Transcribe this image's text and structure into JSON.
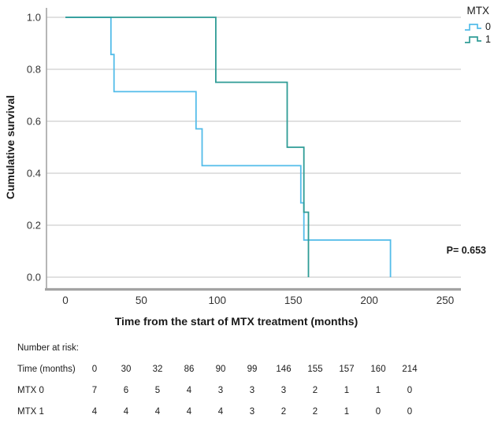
{
  "chart": {
    "y_axis_title": "Cumulative survival",
    "x_axis_title": "Time from the start of MTX treatment (months)",
    "p_value_label": "P= 0.653",
    "legend": {
      "title": "MTX",
      "entries": [
        {
          "label": "0",
          "color": "#53BCE9"
        },
        {
          "label": "1",
          "color": "#2F9C96"
        }
      ]
    }
  },
  "chart_data": {
    "type": "line",
    "subtype": "kaplan-meier-step",
    "title": "",
    "xlabel": "Time from the start of MTX treatment (months)",
    "ylabel": "Cumulative survival",
    "xlim": [
      0,
      260
    ],
    "ylim": [
      0.0,
      1.0
    ],
    "x_ticks": [
      0,
      50,
      100,
      150,
      200,
      250
    ],
    "y_ticks": [
      1.0,
      0.8,
      0.6,
      0.4,
      0.2,
      0.0
    ],
    "grid": "horizontal",
    "legend_position": "top-right",
    "legend_title": "MTX",
    "annotations": [
      {
        "text": "P= 0.653",
        "x": 240,
        "y": 0.12
      }
    ],
    "series": [
      {
        "name": "0",
        "color": "#53BCE9",
        "points": [
          {
            "t": 0,
            "s": 1.0
          },
          {
            "t": 30,
            "s": 0.857
          },
          {
            "t": 32,
            "s": 0.714
          },
          {
            "t": 86,
            "s": 0.571
          },
          {
            "t": 90,
            "s": 0.429
          },
          {
            "t": 155,
            "s": 0.286
          },
          {
            "t": 157,
            "s": 0.143
          },
          {
            "t": 214,
            "s": 0.0
          }
        ]
      },
      {
        "name": "1",
        "color": "#2F9C96",
        "points": [
          {
            "t": 0,
            "s": 1.0
          },
          {
            "t": 99,
            "s": 0.75
          },
          {
            "t": 146,
            "s": 0.5
          },
          {
            "t": 157,
            "s": 0.25
          },
          {
            "t": 160,
            "s": 0.0
          }
        ]
      }
    ]
  },
  "risk_table": {
    "title": "Number at risk:",
    "rows": [
      {
        "label": "Time (months)",
        "values": [
          "0",
          "30",
          "32",
          "86",
          "90",
          "99",
          "146",
          "155",
          "157",
          "160",
          "214"
        ]
      },
      {
        "label": "MTX 0",
        "values": [
          "7",
          "6",
          "5",
          "4",
          "3",
          "3",
          "3",
          "2",
          "1",
          "1",
          "0"
        ]
      },
      {
        "label": "MTX 1",
        "values": [
          "4",
          "4",
          "4",
          "4",
          "4",
          "3",
          "2",
          "2",
          "1",
          "0",
          "0"
        ]
      }
    ]
  }
}
